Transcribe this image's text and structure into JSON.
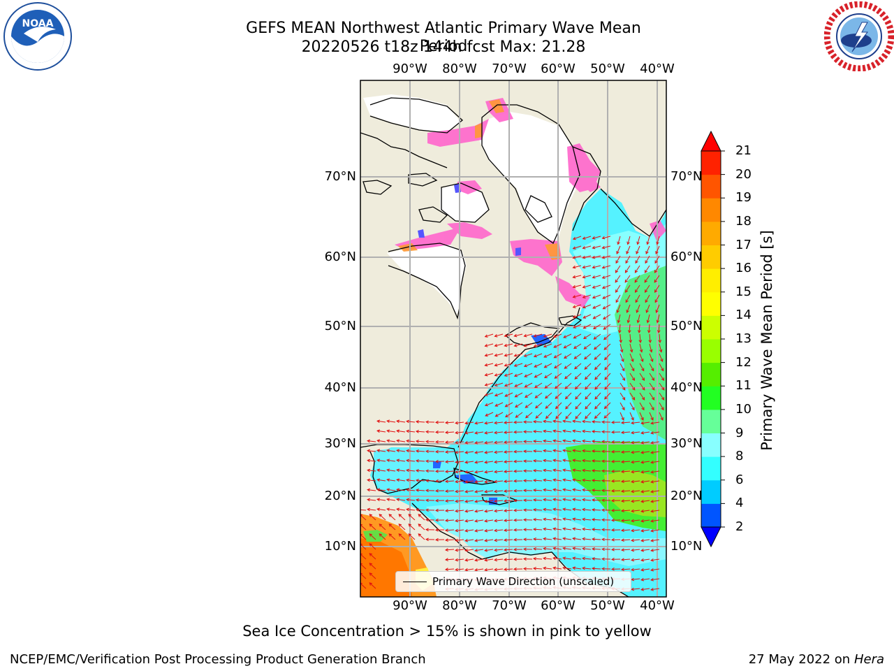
{
  "header": {
    "title": "GEFS MEAN Northwest Atlantic Primary Wave Mean Period",
    "subtitle": "20220526 t18z 144h fcst   Max: 21.28"
  },
  "logos": {
    "left": "NOAA",
    "right": "NATIONAL WEATHER SERVICE"
  },
  "map": {
    "lon_labels": [
      "90°W",
      "80°W",
      "70°W",
      "60°W",
      "50°W",
      "40°W"
    ],
    "lat_labels": [
      "70°N",
      "60°N",
      "50°N",
      "40°N",
      "30°N",
      "20°N",
      "10°N"
    ],
    "land_color": "#efecdc",
    "ice_free_water_color": "#ffffff"
  },
  "colorbar": {
    "title": "Primary Wave Mean Period [s]",
    "tick_labels": [
      "2",
      "4",
      "6",
      "8",
      "9",
      "10",
      "11",
      "12",
      "13",
      "14",
      "15",
      "16",
      "17",
      "18",
      "19",
      "20",
      "21"
    ],
    "colors": [
      "#0055ff",
      "#00ccff",
      "#33ffff",
      "#88ffff",
      "#66ff99",
      "#22ff22",
      "#55ee00",
      "#99ff00",
      "#ccff00",
      "#ffff00",
      "#ffee00",
      "#ffcc00",
      "#ffaa00",
      "#ff8800",
      "#ff5500",
      "#ff2200"
    ],
    "under_color": "#0000ff",
    "over_color": "#ff0000"
  },
  "legend": {
    "label": "Primary Wave Direction (unscaled)"
  },
  "footnote": "Sea Ice Concentration > 15% is shown in pink to yellow",
  "footer": {
    "left": "NCEP/EMC/Verification Post Processing Product Generation Branch",
    "date": "27 May 2022 on",
    "host": "Hera"
  }
}
